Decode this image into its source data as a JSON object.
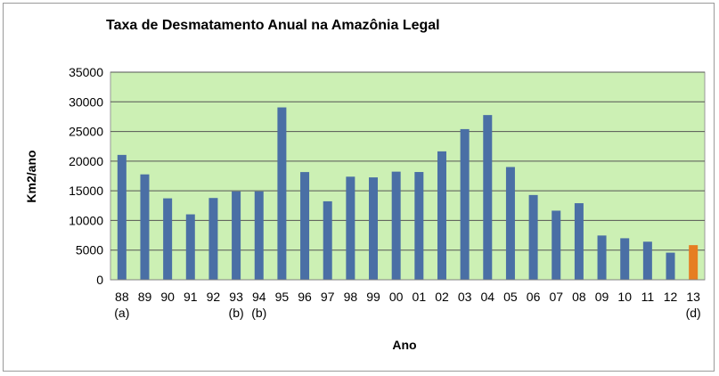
{
  "chart_data": {
    "type": "bar",
    "title": "Taxa de Desmatamento Anual na Amazônia Legal",
    "xlabel": "Ano",
    "ylabel": "Km2/ano",
    "ylim": [
      0,
      35000
    ],
    "yticks": [
      0,
      5000,
      10000,
      15000,
      20000,
      25000,
      30000,
      35000
    ],
    "grid": true,
    "categories": [
      "88",
      "89",
      "90",
      "91",
      "92",
      "93",
      "94",
      "95",
      "96",
      "97",
      "98",
      "99",
      "00",
      "01",
      "02",
      "03",
      "04",
      "05",
      "06",
      "07",
      "08",
      "09",
      "10",
      "11",
      "12",
      "13"
    ],
    "notes": [
      "(a)",
      "",
      "",
      "",
      "",
      "(b)",
      "(b)",
      "",
      "",
      "",
      "",
      "",
      "",
      "",
      "",
      "",
      "",
      "",
      "",
      "",
      "",
      "",
      "",
      "",
      "",
      "(d)"
    ],
    "values": [
      21050,
      17770,
      13730,
      11030,
      13790,
      14900,
      14900,
      29060,
      18160,
      13230,
      17380,
      17260,
      18230,
      18170,
      21650,
      25400,
      27770,
      19010,
      14290,
      11650,
      12910,
      7460,
      7000,
      6420,
      4570,
      5840
    ],
    "colors": {
      "bar": "#4a6fa5",
      "highlight": "#e67e22",
      "plot_background": "#ccf0b4",
      "gridline": "#555555"
    },
    "highlight_categories": [
      "13"
    ]
  }
}
